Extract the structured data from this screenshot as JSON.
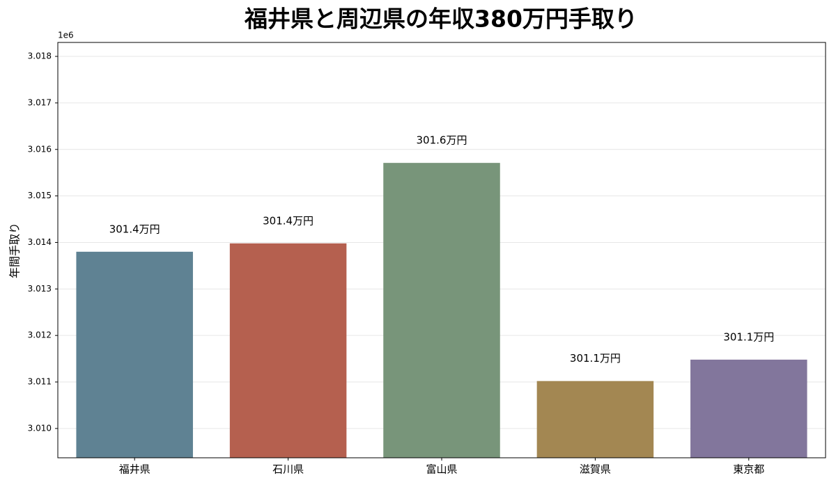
{
  "chart_data": {
    "type": "bar",
    "title": "福井県と周辺県の年収380万円手取り",
    "y_label": "年間手取り",
    "y_offset_label": "1e6",
    "categories": [
      "福井県",
      "石川県",
      "富山県",
      "滋賀県",
      "東京都"
    ],
    "series": [
      {
        "name": "年間手取り",
        "colors": [
          "#5f8293",
          "#b5604f",
          "#78957a",
          "#a38752",
          "#82769c"
        ],
        "values": [
          3013800,
          3013980,
          3015710,
          3011020,
          3011480
        ],
        "value_labels": [
          "301.4万円",
          "301.4万円",
          "301.6万円",
          "301.1万円",
          "301.1万円"
        ]
      }
    ],
    "ylim": [
      3009370,
      3018300
    ],
    "yticks": [
      {
        "value": 3010000,
        "label": "3.010"
      },
      {
        "value": 3011000,
        "label": "3.011"
      },
      {
        "value": 3012000,
        "label": "3.012"
      },
      {
        "value": 3013000,
        "label": "3.013"
      },
      {
        "value": 3014000,
        "label": "3.014"
      },
      {
        "value": 3015000,
        "label": "3.015"
      },
      {
        "value": 3016000,
        "label": "3.016"
      },
      {
        "value": 3017000,
        "label": "3.017"
      },
      {
        "value": 3018000,
        "label": "3.018"
      }
    ],
    "grid": true
  }
}
